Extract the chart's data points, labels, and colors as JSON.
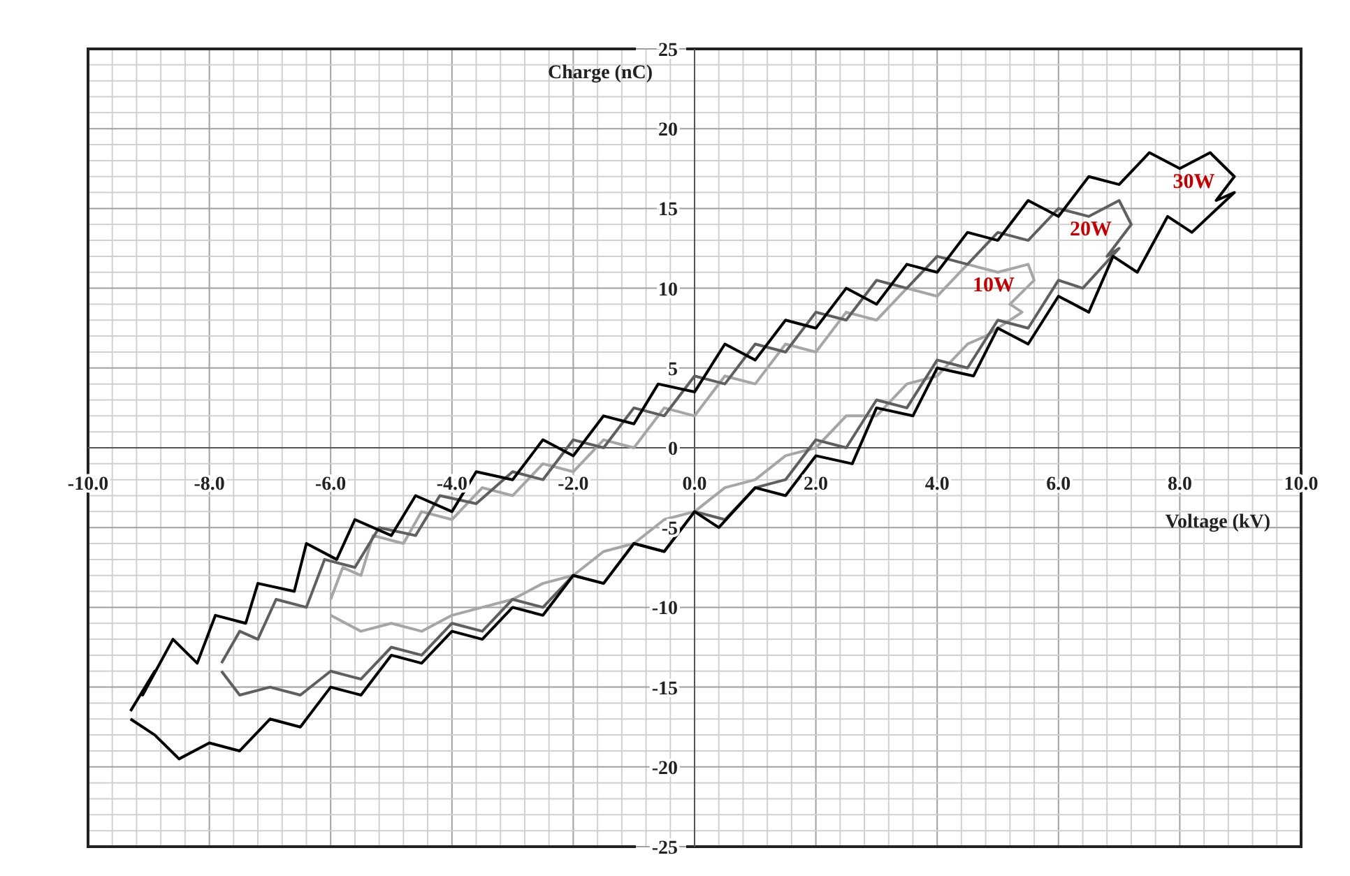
{
  "chart_data": {
    "type": "line",
    "xlabel": "Voltage (kV)",
    "ylabel": "Charge (nC)",
    "xlim": [
      -10,
      10
    ],
    "ylim": [
      -25,
      25
    ],
    "xticks": [
      {
        "value": -10,
        "label": "-10.0"
      },
      {
        "value": -8,
        "label": "-8.0"
      },
      {
        "value": -6,
        "label": "-6.0"
      },
      {
        "value": -4,
        "label": "-4.0"
      },
      {
        "value": -2,
        "label": "-2.0"
      },
      {
        "value": 0,
        "label": "0.0"
      },
      {
        "value": 2,
        "label": "2.0"
      },
      {
        "value": 4,
        "label": "4.0"
      },
      {
        "value": 6,
        "label": "6.0"
      },
      {
        "value": 8,
        "label": "8.0"
      },
      {
        "value": 10,
        "label": "10.0"
      }
    ],
    "yticks": [
      -25,
      -20,
      -15,
      -10,
      -5,
      0,
      5,
      10,
      15,
      20,
      25
    ],
    "grid": true,
    "series": [
      {
        "name": "10W",
        "color": "#a6a6a6",
        "x": [
          -6,
          -5.8,
          -5.5,
          -5.3,
          -4.8,
          -4.5,
          -4,
          -3.5,
          -3,
          -2.5,
          -2,
          -1.5,
          -1,
          -0.5,
          0,
          0.5,
          1,
          1.5,
          2,
          2.5,
          3,
          3.5,
          4,
          4.5,
          5,
          5.5,
          5.6,
          5.2,
          5.4,
          4.8,
          4.5,
          4,
          3.5,
          3,
          2.5,
          2,
          1.5,
          1,
          0.5,
          0,
          -0.5,
          -1,
          -1.5,
          -2,
          -2.5,
          -3,
          -3.5,
          -4,
          -4.5,
          -5,
          -5.5,
          -6
        ],
        "values": [
          -9.5,
          -7.5,
          -8,
          -5.5,
          -6,
          -4,
          -4.5,
          -2.5,
          -3,
          -1,
          -1.5,
          0.5,
          0,
          2.5,
          2,
          4.5,
          4,
          6.5,
          6,
          8.5,
          8,
          10,
          9.5,
          11.5,
          11,
          11.5,
          10.5,
          9,
          8.5,
          7,
          6.5,
          4.5,
          4,
          2,
          2,
          0,
          -0.5,
          -2,
          -2.5,
          -4,
          -4.5,
          -6,
          -6.5,
          -8,
          -8.5,
          -9.5,
          -10,
          -10.5,
          -11.5,
          -11,
          -11.5,
          -10.5
        ]
      },
      {
        "name": "20W",
        "color": "#5f5f5f",
        "x": [
          -7.8,
          -7.5,
          -7.2,
          -6.9,
          -6.4,
          -6.1,
          -5.6,
          -5.2,
          -4.6,
          -4.2,
          -3.6,
          -3,
          -2.5,
          -2,
          -1.5,
          -1,
          -0.5,
          0,
          0.5,
          1,
          1.5,
          2,
          2.5,
          3,
          3.5,
          4,
          4.5,
          5,
          5.5,
          6,
          6.5,
          7,
          7.2,
          6.8,
          7,
          6.4,
          6,
          5.5,
          5,
          4.5,
          4,
          3.5,
          3,
          2.5,
          2,
          1.5,
          1,
          0.5,
          0,
          -0.5,
          -1,
          -1.5,
          -2,
          -2.5,
          -3,
          -3.5,
          -4,
          -4.5,
          -5,
          -5.5,
          -6,
          -6.5,
          -7,
          -7.5,
          -7.8
        ],
        "values": [
          -13.5,
          -11.5,
          -12,
          -9.5,
          -10,
          -7,
          -7.5,
          -5,
          -5.5,
          -3,
          -3.5,
          -1.5,
          -2,
          0.5,
          0,
          2.5,
          2,
          4.5,
          4,
          6.5,
          6,
          8.5,
          8,
          10.5,
          10,
          12,
          11.5,
          13.5,
          13,
          15,
          14.5,
          15.5,
          14,
          12,
          12.5,
          10,
          10.5,
          7.5,
          8,
          5,
          5.5,
          2.5,
          3,
          0,
          0.5,
          -2,
          -2.5,
          -4.5,
          -4,
          -6.5,
          -6,
          -8.5,
          -8,
          -10,
          -9.5,
          -11.5,
          -11,
          -13,
          -12.5,
          -14.5,
          -14,
          -15.5,
          -15,
          -15.5,
          -14
        ]
      },
      {
        "name": "30W",
        "color": "#000000",
        "x": [
          -9.3,
          -8.9,
          -9.1,
          -8.6,
          -8.2,
          -7.9,
          -7.4,
          -7.2,
          -6.6,
          -6.4,
          -5.9,
          -5.6,
          -5,
          -4.6,
          -4,
          -3.6,
          -3,
          -2.5,
          -2,
          -1.5,
          -1,
          -0.6,
          0,
          0.5,
          1,
          1.5,
          2,
          2.5,
          3,
          3.5,
          4,
          4.5,
          5,
          5.5,
          6,
          6.5,
          7,
          7.5,
          8,
          8.5,
          8.9,
          8.6,
          8.9,
          8.2,
          7.8,
          7.3,
          6.9,
          6.5,
          6,
          5.5,
          5,
          4.6,
          4,
          3.6,
          3,
          2.6,
          2,
          1.5,
          1,
          0.4,
          0,
          -0.5,
          -1,
          -1.5,
          -2,
          -2.5,
          -3,
          -3.5,
          -4,
          -4.5,
          -5,
          -5.5,
          -6,
          -6.5,
          -7,
          -7.5,
          -8,
          -8.5,
          -8.9,
          -9.3
        ],
        "values": [
          -16.5,
          -14,
          -15.5,
          -12,
          -13.5,
          -10.5,
          -11,
          -8.5,
          -9,
          -6,
          -7,
          -4.5,
          -5.5,
          -3,
          -4,
          -1.5,
          -2,
          0.5,
          -0.5,
          2,
          1.5,
          4,
          3.5,
          6.5,
          5.5,
          8,
          7.5,
          10,
          9,
          11.5,
          11,
          13.5,
          13,
          15.5,
          14.5,
          17,
          16.5,
          18.5,
          17.5,
          18.5,
          17,
          15.5,
          16,
          13.5,
          14.5,
          11,
          12,
          8.5,
          9.5,
          6.5,
          7.5,
          4.5,
          5,
          2,
          2.5,
          -1,
          -0.5,
          -3,
          -2.5,
          -5,
          -4,
          -6.5,
          -6,
          -8.5,
          -8,
          -10.5,
          -10,
          -12,
          -11.5,
          -13.5,
          -13,
          -15.5,
          -15,
          -17.5,
          -17,
          -19,
          -18.5,
          -19.5,
          -18,
          -17
        ]
      }
    ]
  }
}
